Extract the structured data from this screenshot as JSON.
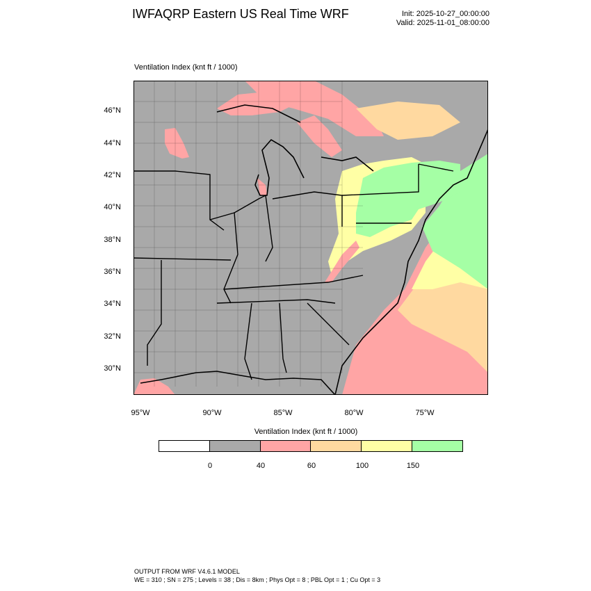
{
  "header": {
    "title": "IWFAQRP Eastern US Real Time WRF",
    "init": "Init: 2025-10-27_00:00:00",
    "valid": "Valid: 2025-11-01_08:00:00"
  },
  "map": {
    "field_label": "Ventilation Index   (knt ft / 1000)",
    "lat_labels": [
      "46°N",
      "44°N",
      "42°N",
      "40°N",
      "38°N",
      "36°N",
      "34°N",
      "32°N",
      "30°N"
    ],
    "lon_labels": [
      "95°W",
      "90°W",
      "85°W",
      "80°W",
      "75°W"
    ],
    "colors": {
      "land": "#a9a9a9",
      "water": "#a9a9a9",
      "pink": "#ffa5a5",
      "orange": "#ffd9a0",
      "yellow": "#ffffa5",
      "green": "#a5ffa5"
    }
  },
  "colorbar": {
    "title": "Ventilation Index  (knt ft / 1000)",
    "colors": [
      "#ffffff",
      "#a9a9a9",
      "#ffa5a5",
      "#ffd9a0",
      "#ffffa5",
      "#a5ffa5"
    ],
    "ticks": [
      "0",
      "40",
      "60",
      "100",
      "150"
    ]
  },
  "footer": {
    "line1": "OUTPUT FROM WRF V4.6.1 MODEL",
    "line2": "WE = 310 ; SN = 275 ; Levels = 38 ; Dis = 8km ; Phys Opt = 8 ; PBL Opt = 1 ; Cu Opt = 3"
  }
}
